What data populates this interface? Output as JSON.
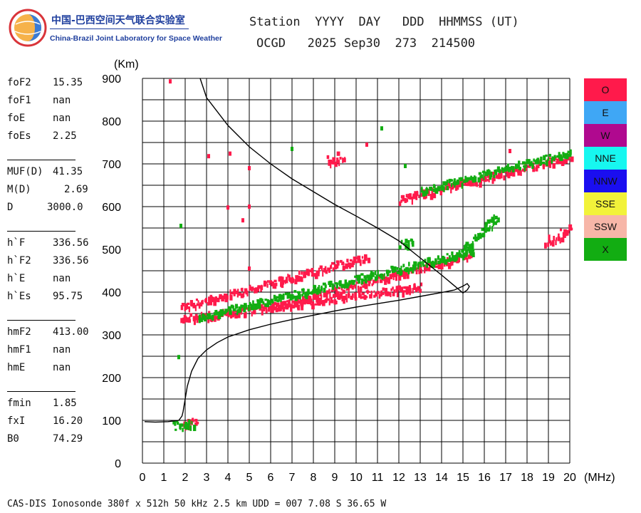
{
  "logo": {
    "text_cn": "中国-巴西空间天气联合实验室",
    "text_en": "China-Brazil Joint Laboratory for Space Weather"
  },
  "header": {
    "line1": "Station  YYYY  DAY   DDD  HHMMSS (UT)",
    "line2": "OCGD   2025 Sep30  273  214500"
  },
  "params": [
    {
      "label": "foF2",
      "value": "15.35"
    },
    {
      "label": "foF1",
      "value": "nan"
    },
    {
      "label": "foE",
      "value": "nan"
    },
    {
      "label": "foEs",
      "value": "2.25"
    },
    {
      "label": "MUF(D)",
      "value": "41.35"
    },
    {
      "label": "M(D)",
      "value": "2.69"
    },
    {
      "label": "D",
      "value": "3000.0"
    },
    {
      "label": "h`F",
      "value": "336.56"
    },
    {
      "label": "h`F2",
      "value": "336.56"
    },
    {
      "label": "h`E",
      "value": "nan"
    },
    {
      "label": "h`Es",
      "value": "95.75"
    },
    {
      "label": "hmF2",
      "value": "413.00"
    },
    {
      "label": "hmF1",
      "value": "nan"
    },
    {
      "label": "hmE",
      "value": "nan"
    },
    {
      "label": "fmin",
      "value": "1.85"
    },
    {
      "label": "fxI",
      "value": "16.20"
    },
    {
      "label": "B0",
      "value": "74.29"
    }
  ],
  "legend": [
    {
      "label": "O",
      "color": "#ff1a4b"
    },
    {
      "label": "E",
      "color": "#3fa7f5"
    },
    {
      "label": "W",
      "color": "#b0098f"
    },
    {
      "label": "NNE",
      "color": "#17f7f0"
    },
    {
      "label": "NNW",
      "color": "#1a0ef0"
    },
    {
      "label": "SSE",
      "color": "#f2f23a"
    },
    {
      "label": "SSW",
      "color": "#f7b6a8"
    },
    {
      "label": "X",
      "color": "#12ad12"
    }
  ],
  "footer": "CAS-DIS Ionosonde 380f x 512h 50 kHz 2.5 km UDD = 007 7.08 S 36.65 W",
  "chart_data": {
    "type": "scatter",
    "title": "",
    "xlabel": "(MHz)",
    "ylabel": "(Km)",
    "xlim": [
      0,
      20
    ],
    "ylim": [
      0,
      900
    ],
    "xticks": [
      0,
      1,
      2,
      3,
      4,
      5,
      6,
      7,
      8,
      9,
      10,
      11,
      12,
      13,
      14,
      15,
      16,
      17,
      18,
      19,
      20
    ],
    "yticks": [
      0,
      100,
      200,
      300,
      400,
      500,
      600,
      700,
      800,
      900
    ],
    "grid": true,
    "legend_position": "right",
    "colors": {
      "O": "#ff1a4b",
      "X": "#12ad12",
      "profile": "#000000"
    },
    "trace_segments": [
      {
        "polarization": "O",
        "x": [
          1.9,
          2.5
        ],
        "y": [
          93,
          105
        ]
      },
      {
        "polarization": "X",
        "x": [
          1.4,
          2.4
        ],
        "y": [
          90,
          98
        ]
      },
      {
        "polarization": "O",
        "x": [
          1.8,
          13.0
        ],
        "y": [
          340,
          415
        ]
      },
      {
        "polarization": "O",
        "x": [
          6.0,
          15.3
        ],
        "y": [
          365,
          490
        ]
      },
      {
        "polarization": "O",
        "x": [
          1.8,
          10.5
        ],
        "y": [
          368,
          485
        ]
      },
      {
        "polarization": "X",
        "x": [
          2.6,
          15.5
        ],
        "y": [
          345,
          500
        ]
      },
      {
        "polarization": "O",
        "x": [
          12.0,
          20.0
        ],
        "y": [
          620,
          720
        ]
      },
      {
        "polarization": "X",
        "x": [
          13.0,
          20.0
        ],
        "y": [
          640,
          730
        ]
      },
      {
        "polarization": "X",
        "x": [
          15.0,
          16.6
        ],
        "y": [
          500,
          580
        ]
      },
      {
        "polarization": "O",
        "x": [
          18.8,
          20.0
        ],
        "y": [
          520,
          548
        ]
      },
      {
        "polarization": "X",
        "x": [
          12.0,
          12.6
        ],
        "y": [
          510,
          518
        ]
      },
      {
        "polarization": "O",
        "x": [
          8.6,
          9.4
        ],
        "y": [
          710,
          722
        ]
      }
    ],
    "scattered_points": [
      {
        "polarization": "O",
        "x": 1.3,
        "y": 893
      },
      {
        "polarization": "X",
        "x": 11.2,
        "y": 783
      },
      {
        "polarization": "O",
        "x": 4.1,
        "y": 724
      },
      {
        "polarization": "O",
        "x": 3.1,
        "y": 718
      },
      {
        "polarization": "O",
        "x": 5.0,
        "y": 690
      },
      {
        "polarization": "O",
        "x": 4.0,
        "y": 598
      },
      {
        "polarization": "O",
        "x": 4.7,
        "y": 568
      },
      {
        "polarization": "O",
        "x": 5.0,
        "y": 600
      },
      {
        "polarization": "O",
        "x": 5.0,
        "y": 455
      },
      {
        "polarization": "X",
        "x": 1.8,
        "y": 555
      },
      {
        "polarization": "X",
        "x": 1.7,
        "y": 248
      },
      {
        "polarization": "X",
        "x": 12.3,
        "y": 695
      },
      {
        "polarization": "O",
        "x": 17.2,
        "y": 730
      },
      {
        "polarization": "X",
        "x": 7.0,
        "y": 735
      },
      {
        "polarization": "O",
        "x": 10.5,
        "y": 745
      }
    ],
    "profile_curve": {
      "x": [
        0.1,
        0.6,
        1.2,
        1.7,
        1.85,
        1.9,
        2.0,
        2.1,
        2.3,
        2.6,
        3.0,
        3.5,
        4.0,
        5.0,
        6.0,
        7.0,
        8.0,
        9.0,
        10.0,
        11.0,
        12.0,
        13.0,
        14.0,
        14.6,
        15.0,
        15.2,
        15.3,
        15.2,
        15.0,
        14.0,
        13.0,
        12.0,
        11.0,
        10.0,
        9.0,
        8.0,
        7.0,
        6.0,
        5.0,
        4.0,
        3.0,
        2.7
      ],
      "y": [
        97,
        96,
        97,
        100,
        110,
        120,
        150,
        180,
        215,
        245,
        265,
        282,
        295,
        312,
        325,
        336,
        346,
        356,
        365,
        373,
        381,
        390,
        399,
        405,
        414,
        420,
        413,
        405,
        398,
        440,
        480,
        520,
        550,
        578,
        605,
        635,
        665,
        700,
        740,
        790,
        855,
        900
      ]
    }
  }
}
